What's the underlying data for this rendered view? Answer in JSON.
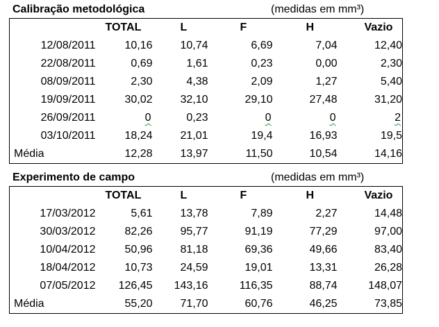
{
  "sections": [
    {
      "title": "Calibração metodológica",
      "units": "(medidas em mm³)",
      "headers": [
        "",
        "TOTAL",
        "L",
        "F",
        "H",
        "Vazio"
      ],
      "rows": [
        [
          "12/08/2011",
          "10,16",
          "10,74",
          "6,69",
          "7,04",
          "12,40"
        ],
        [
          "22/08/2011",
          "0,69",
          "1,61",
          "0,23",
          "0,00",
          "2,30"
        ],
        [
          "08/09/2011",
          "2,30",
          "4,38",
          "2,09",
          "1,27",
          "5,40"
        ],
        [
          "19/09/2011",
          "30,02",
          "32,10",
          "29,10",
          "27,48",
          "31,20"
        ],
        [
          "26/09/2011",
          "0",
          "0,23",
          "0",
          "0",
          "2"
        ],
        [
          "03/10/2011",
          "18,24",
          "21,01",
          "19,4",
          "16,93",
          "19,5"
        ]
      ],
      "average": [
        "Média",
        "12,28",
        "13,97",
        "11,50",
        "10,54",
        "14,16"
      ]
    },
    {
      "title": "Experimento de campo",
      "units": "(medidas em mm³)",
      "headers": [
        "",
        "TOTAL",
        "L",
        "F",
        "H",
        "Vazio"
      ],
      "rows": [
        [
          "17/03/2012",
          "5,61",
          "13,78",
          "7,89",
          "2,27",
          "14,48"
        ],
        [
          "30/03/2012",
          "82,26",
          "95,77",
          "91,19",
          "77,29",
          "97,00"
        ],
        [
          "10/04/2012",
          "50,96",
          "81,18",
          "69,36",
          "49,66",
          "83,40"
        ],
        [
          "18/04/2012",
          "10,73",
          "24,59",
          "19,01",
          "13,31",
          "26,28"
        ],
        [
          "07/05/2012",
          "126,45",
          "143,16",
          "116,35",
          "88,74",
          "148,07"
        ]
      ],
      "average": [
        "Média",
        "55,20",
        "71,70",
        "60,76",
        "46,25",
        "73,85"
      ]
    }
  ]
}
